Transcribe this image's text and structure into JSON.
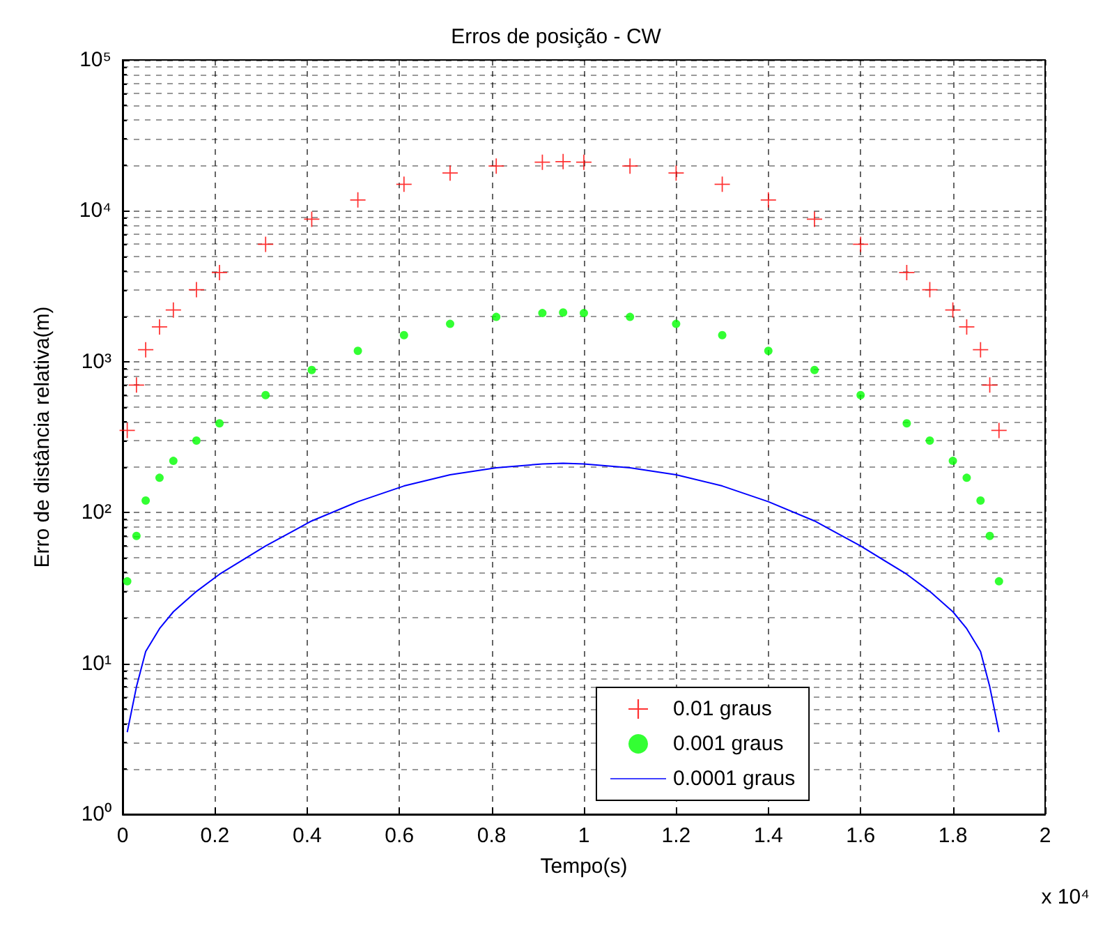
{
  "chart_data": {
    "type": "scatter",
    "title": "Erros de posição - CW",
    "xlabel": "Tempo(s)",
    "ylabel": "Erro de distância relativa(m)",
    "annotations": [
      "x 10⁴"
    ],
    "log": "y",
    "grid": true,
    "legend": "bottom",
    "xlim": [
      0,
      2
    ],
    "xticks": [
      0,
      0.2,
      0.4,
      0.6,
      0.8,
      1,
      1.2,
      1.4,
      1.6,
      1.8,
      2
    ],
    "ylim": [
      1,
      100000
    ],
    "yticks": [
      {
        "value": 1,
        "label": "10⁰"
      },
      {
        "value": 10,
        "label": "10¹"
      },
      {
        "value": 100,
        "label": "10²"
      },
      {
        "value": 1000,
        "label": "10³"
      },
      {
        "value": 10000,
        "label": "10⁴"
      },
      {
        "value": 100000,
        "label": "10⁵"
      }
    ],
    "x": [
      0.01,
      0.03,
      0.05,
      0.08,
      0.11,
      0.16,
      0.21,
      0.31,
      0.41,
      0.51,
      0.61,
      0.71,
      0.81,
      0.91,
      0.955,
      1.0,
      1.1,
      1.2,
      1.3,
      1.4,
      1.5,
      1.6,
      1.7,
      1.75,
      1.8,
      1.83,
      1.86,
      1.88,
      1.9
    ],
    "series": [
      {
        "name": "0.01 graus",
        "type": "scatter",
        "marker": "cross",
        "color": "#ff0000",
        "values": [
          350,
          700,
          1200,
          1700,
          2200,
          3000,
          3900,
          6000,
          8800,
          11800,
          15000,
          17800,
          19800,
          21000,
          21200,
          21000,
          19800,
          17800,
          15000,
          11800,
          8800,
          6000,
          3900,
          3000,
          2200,
          1700,
          1200,
          700,
          350
        ]
      },
      {
        "name": "0.001 graus",
        "type": "scatter",
        "marker": "circle",
        "color": "#00ff00",
        "values": [
          35,
          70,
          120,
          170,
          220,
          300,
          390,
          600,
          880,
          1180,
          1500,
          1780,
          1980,
          2100,
          2120,
          2100,
          1980,
          1780,
          1500,
          1180,
          880,
          600,
          390,
          300,
          220,
          170,
          120,
          70,
          35
        ]
      },
      {
        "name": "0.0001 graus",
        "type": "line",
        "marker": "none",
        "line_style": "solid",
        "color": "#0000ff",
        "values": [
          3.5,
          7,
          12,
          17,
          22,
          30,
          39,
          60,
          88,
          118,
          150,
          178,
          198,
          210,
          212,
          210,
          198,
          178,
          150,
          118,
          88,
          60,
          39,
          30,
          22,
          17,
          12,
          7,
          3.5
        ]
      }
    ]
  }
}
